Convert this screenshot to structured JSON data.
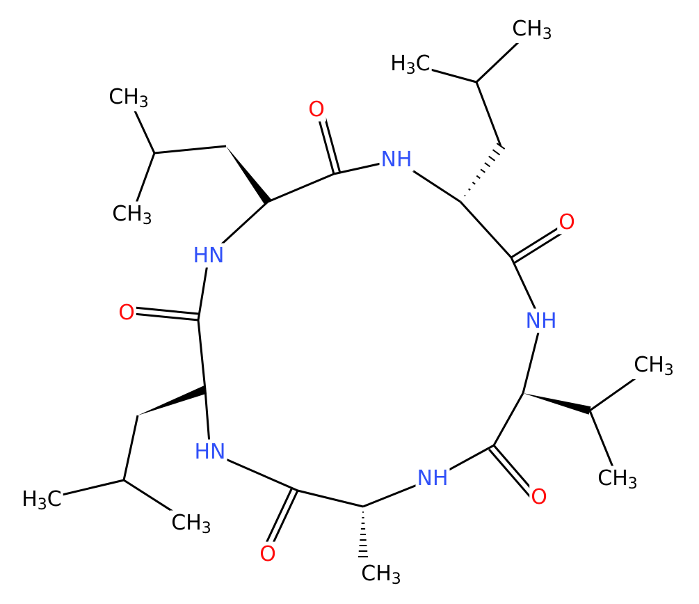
{
  "atoms": [
    {
      "label": "O"
    },
    {
      "label": "NH"
    },
    {
      "label": "O"
    },
    {
      "label": "NH"
    },
    {
      "label": "CH3"
    },
    {
      "label": "CH3"
    },
    {
      "label": "O"
    },
    {
      "label": "NH"
    },
    {
      "label": "CH3"
    },
    {
      "label": "O"
    },
    {
      "label": "HN"
    },
    {
      "label": "H3C"
    },
    {
      "label": "CH3"
    },
    {
      "label": "O"
    },
    {
      "label": "HN"
    },
    {
      "label": "CH3"
    },
    {
      "label": "CH3"
    },
    {
      "label": "CH3"
    },
    {
      "label": "H3C"
    }
  ]
}
